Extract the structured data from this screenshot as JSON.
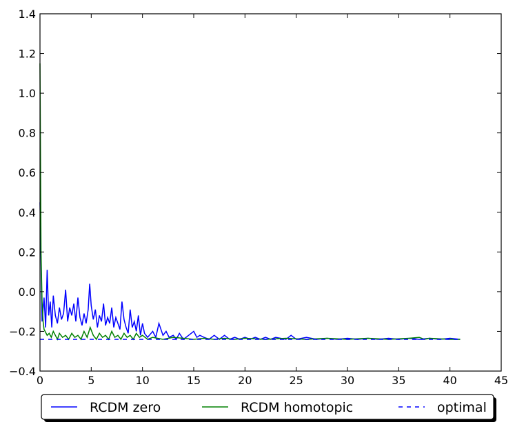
{
  "chart_data": {
    "type": "line",
    "title": "",
    "xlabel": "",
    "ylabel": "",
    "xlim": [
      0,
      45
    ],
    "ylim": [
      -0.4,
      1.4
    ],
    "xticks": [
      0,
      5,
      10,
      15,
      20,
      25,
      30,
      35,
      40,
      45
    ],
    "yticks": [
      -0.4,
      -0.2,
      0.0,
      0.2,
      0.4,
      0.6,
      0.8,
      1.0,
      1.2,
      1.4
    ],
    "x_tick_labels": [
      "0",
      "5",
      "10",
      "15",
      "20",
      "25",
      "30",
      "35",
      "40",
      "45"
    ],
    "y_tick_labels": [
      "−0.4",
      "−0.2",
      "0.0",
      "0.2",
      "0.4",
      "0.6",
      "0.8",
      "1.0",
      "1.2",
      "1.4"
    ],
    "grid": false,
    "legend_position": "below plot",
    "series": [
      {
        "name": "RCDM zero",
        "color": "#0000ff",
        "style": "solid",
        "x": [
          0,
          0.2,
          0.4,
          0.55,
          0.7,
          0.85,
          1.0,
          1.15,
          1.3,
          1.5,
          1.7,
          1.9,
          2.1,
          2.3,
          2.5,
          2.7,
          2.9,
          3.1,
          3.3,
          3.5,
          3.7,
          3.9,
          4.1,
          4.3,
          4.5,
          4.7,
          4.85,
          5.0,
          5.2,
          5.4,
          5.6,
          5.8,
          6.0,
          6.2,
          6.4,
          6.6,
          6.8,
          7.0,
          7.2,
          7.4,
          7.6,
          7.8,
          8.0,
          8.2,
          8.4,
          8.6,
          8.8,
          9.0,
          9.2,
          9.4,
          9.6,
          9.8,
          10.0,
          10.2,
          10.5,
          11.0,
          11.3,
          11.6,
          12.0,
          12.3,
          12.6,
          13.0,
          13.3,
          13.6,
          14.0,
          14.5,
          15.0,
          15.3,
          15.6,
          16.0,
          16.5,
          17.0,
          17.5,
          18.0,
          18.5,
          19.0,
          19.5,
          20.0,
          20.5,
          21.0,
          21.5,
          22.0,
          22.5,
          23.0,
          24.0,
          24.5,
          25.0,
          26.0,
          27.0,
          28.0,
          29.0,
          30.0,
          31.0,
          32.0,
          33.0,
          34.0,
          35.0,
          36.0,
          37.0,
          38.0,
          39.0,
          40.0,
          41.0
        ],
        "y": [
          0.45,
          -0.15,
          -0.03,
          -0.18,
          0.11,
          -0.12,
          -0.05,
          -0.18,
          -0.02,
          -0.12,
          -0.16,
          -0.08,
          -0.14,
          -0.11,
          0.01,
          -0.15,
          -0.08,
          -0.12,
          -0.06,
          -0.15,
          -0.03,
          -0.13,
          -0.17,
          -0.11,
          -0.16,
          -0.09,
          0.04,
          -0.07,
          -0.14,
          -0.09,
          -0.18,
          -0.12,
          -0.15,
          -0.06,
          -0.17,
          -0.13,
          -0.16,
          -0.08,
          -0.18,
          -0.13,
          -0.16,
          -0.19,
          -0.05,
          -0.14,
          -0.18,
          -0.21,
          -0.09,
          -0.18,
          -0.15,
          -0.2,
          -0.12,
          -0.22,
          -0.16,
          -0.21,
          -0.23,
          -0.2,
          -0.23,
          -0.16,
          -0.22,
          -0.2,
          -0.23,
          -0.22,
          -0.24,
          -0.21,
          -0.24,
          -0.22,
          -0.2,
          -0.23,
          -0.22,
          -0.23,
          -0.24,
          -0.22,
          -0.24,
          -0.22,
          -0.24,
          -0.23,
          -0.24,
          -0.23,
          -0.24,
          -0.23,
          -0.24,
          -0.23,
          -0.24,
          -0.23,
          -0.24,
          -0.22,
          -0.24,
          -0.23,
          -0.24,
          -0.235,
          -0.24,
          -0.235,
          -0.24,
          -0.235,
          -0.24,
          -0.235,
          -0.24,
          -0.235,
          -0.24,
          -0.235,
          -0.24,
          -0.235,
          -0.24
        ]
      },
      {
        "name": "RCDM homotopic",
        "color": "#008000",
        "style": "solid",
        "x": [
          0,
          0.1,
          0.2,
          0.3,
          0.4,
          0.5,
          0.7,
          0.9,
          1.1,
          1.3,
          1.5,
          1.7,
          1.9,
          2.2,
          2.5,
          2.8,
          3.1,
          3.4,
          3.7,
          4.0,
          4.3,
          4.6,
          4.9,
          5.2,
          5.5,
          5.8,
          6.1,
          6.4,
          6.7,
          7.0,
          7.3,
          7.6,
          7.9,
          8.2,
          8.5,
          8.8,
          9.1,
          9.4,
          9.7,
          10.0,
          10.5,
          11.0,
          12.0,
          13.0,
          14.0,
          15.0,
          16.0,
          17.0,
          18.0,
          19.0,
          20.0,
          22.0,
          24.0,
          26.0,
          28.0,
          30.0,
          32.0,
          34.0,
          36.0,
          37.0,
          37.5,
          38.0,
          40.0,
          41.0
        ],
        "y": [
          1.15,
          0.2,
          -0.05,
          -0.15,
          -0.19,
          -0.2,
          -0.22,
          -0.21,
          -0.23,
          -0.2,
          -0.22,
          -0.24,
          -0.21,
          -0.23,
          -0.22,
          -0.24,
          -0.21,
          -0.23,
          -0.22,
          -0.24,
          -0.2,
          -0.23,
          -0.18,
          -0.22,
          -0.24,
          -0.21,
          -0.23,
          -0.22,
          -0.24,
          -0.2,
          -0.23,
          -0.22,
          -0.24,
          -0.21,
          -0.23,
          -0.22,
          -0.24,
          -0.21,
          -0.23,
          -0.22,
          -0.24,
          -0.23,
          -0.24,
          -0.23,
          -0.235,
          -0.24,
          -0.235,
          -0.24,
          -0.235,
          -0.24,
          -0.235,
          -0.24,
          -0.235,
          -0.24,
          -0.235,
          -0.24,
          -0.235,
          -0.24,
          -0.235,
          -0.23,
          -0.24,
          -0.235,
          -0.24,
          -0.24
        ]
      },
      {
        "name": "optimal",
        "color": "#0000ff",
        "style": "dashed",
        "x": [
          0,
          41
        ],
        "y": [
          -0.24,
          -0.24
        ]
      }
    ]
  }
}
